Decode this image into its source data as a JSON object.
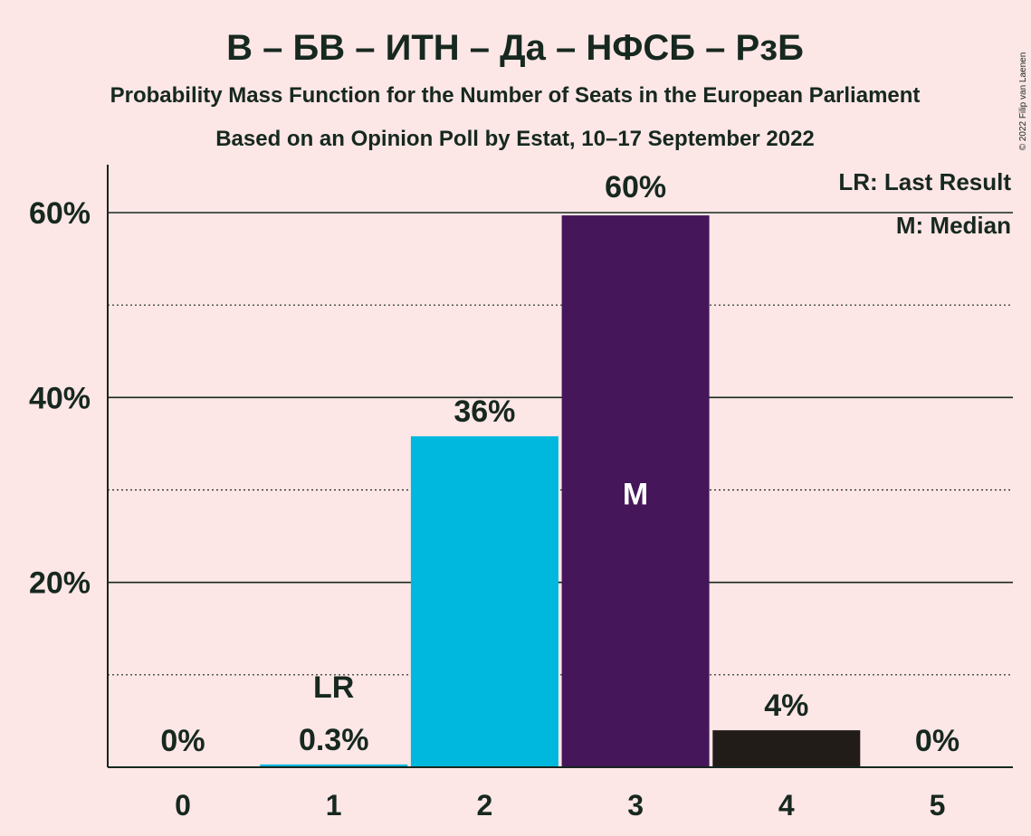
{
  "chart_data": {
    "type": "bar",
    "title": "В – БВ – ИТН – Да – НФСБ – РзБ",
    "subtitle": "Probability Mass Function for the Number of Seats in the European Parliament",
    "subtitle2": "Based on an Opinion Poll by Estat, 10–17 September 2022",
    "credit": "© 2022 Filip van Laenen",
    "categories": [
      "0",
      "1",
      "2",
      "3",
      "4",
      "5"
    ],
    "values": [
      0,
      0.3,
      35.8,
      59.7,
      4.0,
      0
    ],
    "value_labels": [
      "0%",
      "0.3%",
      "36%",
      "60%",
      "4%",
      "0%"
    ],
    "bar_colors": [
      "#00B8DE",
      "#00B8DE",
      "#00B8DE",
      "#45165A",
      "#221C19",
      "#221C19"
    ],
    "ylim": [
      0,
      65
    ],
    "y_ticks": [
      {
        "value": 20,
        "label": "20%"
      },
      {
        "value": 40,
        "label": "40%"
      },
      {
        "value": 60,
        "label": "60%"
      }
    ],
    "y_minor_gridlines": [
      10,
      30,
      50
    ],
    "markers": {
      "last_result": {
        "category": "1",
        "label": "LR"
      },
      "median": {
        "category": "3",
        "label": "M"
      }
    },
    "legend": {
      "placement": "top-right",
      "entries": [
        "LR: Last Result",
        "M: Median"
      ]
    },
    "grid": true
  }
}
